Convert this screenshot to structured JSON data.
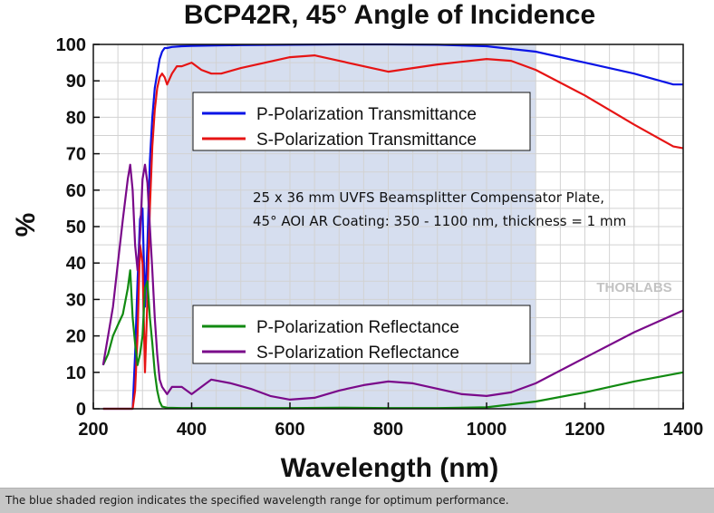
{
  "chart_data": {
    "type": "line",
    "title": "BCP42R, 45° Angle of Incidence",
    "xlabel": "Wavelength (nm)",
    "ylabel": "%",
    "xlim": [
      200,
      1400
    ],
    "ylim": [
      0,
      100
    ],
    "xticks": [
      200,
      400,
      600,
      800,
      1000,
      1200,
      1400
    ],
    "yticks": [
      0,
      10,
      20,
      30,
      40,
      50,
      60,
      70,
      80,
      90,
      100
    ],
    "grid": true,
    "shaded_region": {
      "x": [
        350,
        1100
      ],
      "color": "#d6deef"
    },
    "annotation": [
      "25 x 36 mm UVFS Beamsplitter Compensator Plate,",
      "45° AOI AR Coating: 350 - 1100 nm, thickness = 1 mm"
    ],
    "watermark": "THORLABS",
    "legend_upper": {
      "position": "upper-left",
      "entries": [
        "P-Polarization Transmittance",
        "S-Polarization Transmittance"
      ]
    },
    "legend_lower": {
      "position": "lower-left",
      "entries": [
        "P-Polarization Reflectance",
        "S-Polarization Reflectance"
      ]
    },
    "series": [
      {
        "name": "P-Polarization Transmittance",
        "color": "#0a14e6",
        "x": [
          220,
          230,
          240,
          260,
          280,
          285,
          290,
          295,
          300,
          305,
          310,
          315,
          320,
          325,
          330,
          335,
          340,
          345,
          350,
          360,
          380,
          400,
          450,
          500,
          600,
          700,
          800,
          900,
          1000,
          1100,
          1200,
          1300,
          1380,
          1400
        ],
        "y": [
          0,
          0,
          0,
          0,
          0,
          15,
          35,
          52,
          55,
          28,
          45,
          68,
          80,
          88,
          92,
          96,
          98,
          99,
          99,
          99.3,
          99.5,
          99.6,
          99.7,
          99.8,
          99.9,
          100,
          100,
          99.9,
          99.5,
          98,
          95,
          92,
          89,
          89
        ]
      },
      {
        "name": "S-Polarization Transmittance",
        "color": "#e61414",
        "x": [
          220,
          230,
          240,
          260,
          280,
          285,
          290,
          295,
          300,
          305,
          310,
          315,
          320,
          325,
          330,
          335,
          340,
          345,
          350,
          360,
          370,
          380,
          400,
          420,
          440,
          460,
          500,
          550,
          600,
          650,
          700,
          800,
          900,
          1000,
          1050,
          1100,
          1200,
          1300,
          1380,
          1400
        ],
        "y": [
          0,
          0,
          0,
          0,
          0,
          5,
          20,
          45,
          40,
          10,
          30,
          55,
          72,
          82,
          88,
          91,
          92,
          91,
          89,
          92,
          94,
          94,
          95,
          93,
          92,
          92,
          93.5,
          95,
          96.5,
          97,
          95.5,
          92.5,
          94.5,
          96,
          95.5,
          93,
          86,
          78,
          72,
          71.5
        ]
      },
      {
        "name": "P-Polarization Reflectance",
        "color": "#118a11",
        "x": [
          220,
          230,
          240,
          250,
          260,
          270,
          275,
          280,
          285,
          290,
          295,
          300,
          305,
          310,
          315,
          320,
          325,
          330,
          335,
          340,
          350,
          380,
          400,
          500,
          600,
          700,
          800,
          900,
          1000,
          1100,
          1200,
          1300,
          1400
        ],
        "y": [
          12,
          15,
          20,
          23,
          26,
          33,
          38,
          25,
          18,
          12,
          15,
          20,
          33,
          35,
          25,
          18,
          10,
          5,
          2,
          0.6,
          0.3,
          0.2,
          0.2,
          0.2,
          0.2,
          0.3,
          0.2,
          0.2,
          0.4,
          2,
          4.5,
          7.5,
          10
        ]
      },
      {
        "name": "S-Polarization Reflectance",
        "color": "#7a0a8a",
        "x": [
          220,
          230,
          240,
          250,
          260,
          270,
          275,
          280,
          285,
          290,
          295,
          300,
          305,
          310,
          315,
          320,
          325,
          330,
          335,
          340,
          350,
          360,
          380,
          400,
          440,
          480,
          520,
          560,
          600,
          650,
          700,
          750,
          800,
          850,
          900,
          950,
          1000,
          1050,
          1100,
          1200,
          1300,
          1400
        ],
        "y": [
          12,
          20,
          28,
          40,
          52,
          63,
          67,
          60,
          45,
          38,
          47,
          63,
          67,
          62,
          50,
          38,
          25,
          15,
          8,
          6,
          4,
          6,
          6,
          4,
          8,
          7,
          5.5,
          3.5,
          2.5,
          3,
          5,
          6.5,
          7.5,
          7,
          5.5,
          4,
          3.5,
          4.5,
          7,
          14,
          21,
          27
        ]
      }
    ]
  },
  "caption": "The blue shaded region indicates the specified wavelength range for optimum performance."
}
